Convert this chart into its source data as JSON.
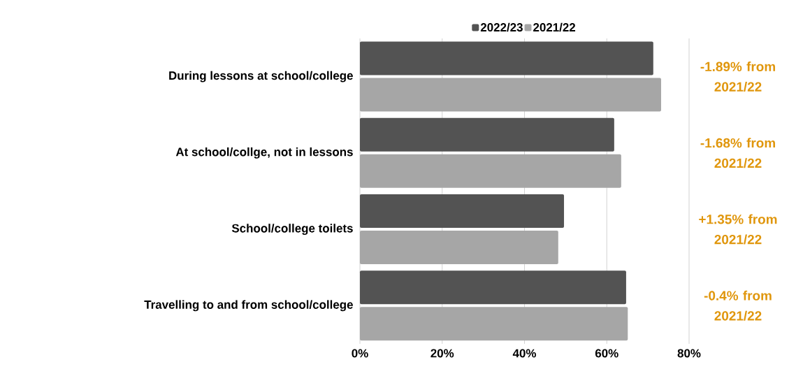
{
  "chart_data": {
    "type": "bar",
    "orientation": "horizontal",
    "categories": [
      "During lessons at school/college",
      "At school/collge, not in lessons",
      "School/college toilets",
      "Travelling to and from school/college"
    ],
    "series": [
      {
        "name": "2022/23",
        "color": "#535353",
        "values": [
          71.3,
          61.8,
          49.6,
          64.7
        ]
      },
      {
        "name": "2021/22",
        "color": "#a6a6a6",
        "values": [
          73.2,
          63.5,
          48.2,
          65.1
        ]
      }
    ],
    "xlim": [
      0,
      80
    ],
    "xticks": [
      {
        "value": 0,
        "label": "0%"
      },
      {
        "value": 20,
        "label": "20%"
      },
      {
        "value": 40,
        "label": "40%"
      },
      {
        "value": 60,
        "label": "60%"
      },
      {
        "value": 80,
        "label": "80%"
      }
    ],
    "grid": "x",
    "legend": "top",
    "annotations": [
      "-1.89% from 2021/22",
      "-1.68% from 2021/22",
      "+1.35% from 2021/22",
      "-0.4% from 2021/22"
    ]
  }
}
